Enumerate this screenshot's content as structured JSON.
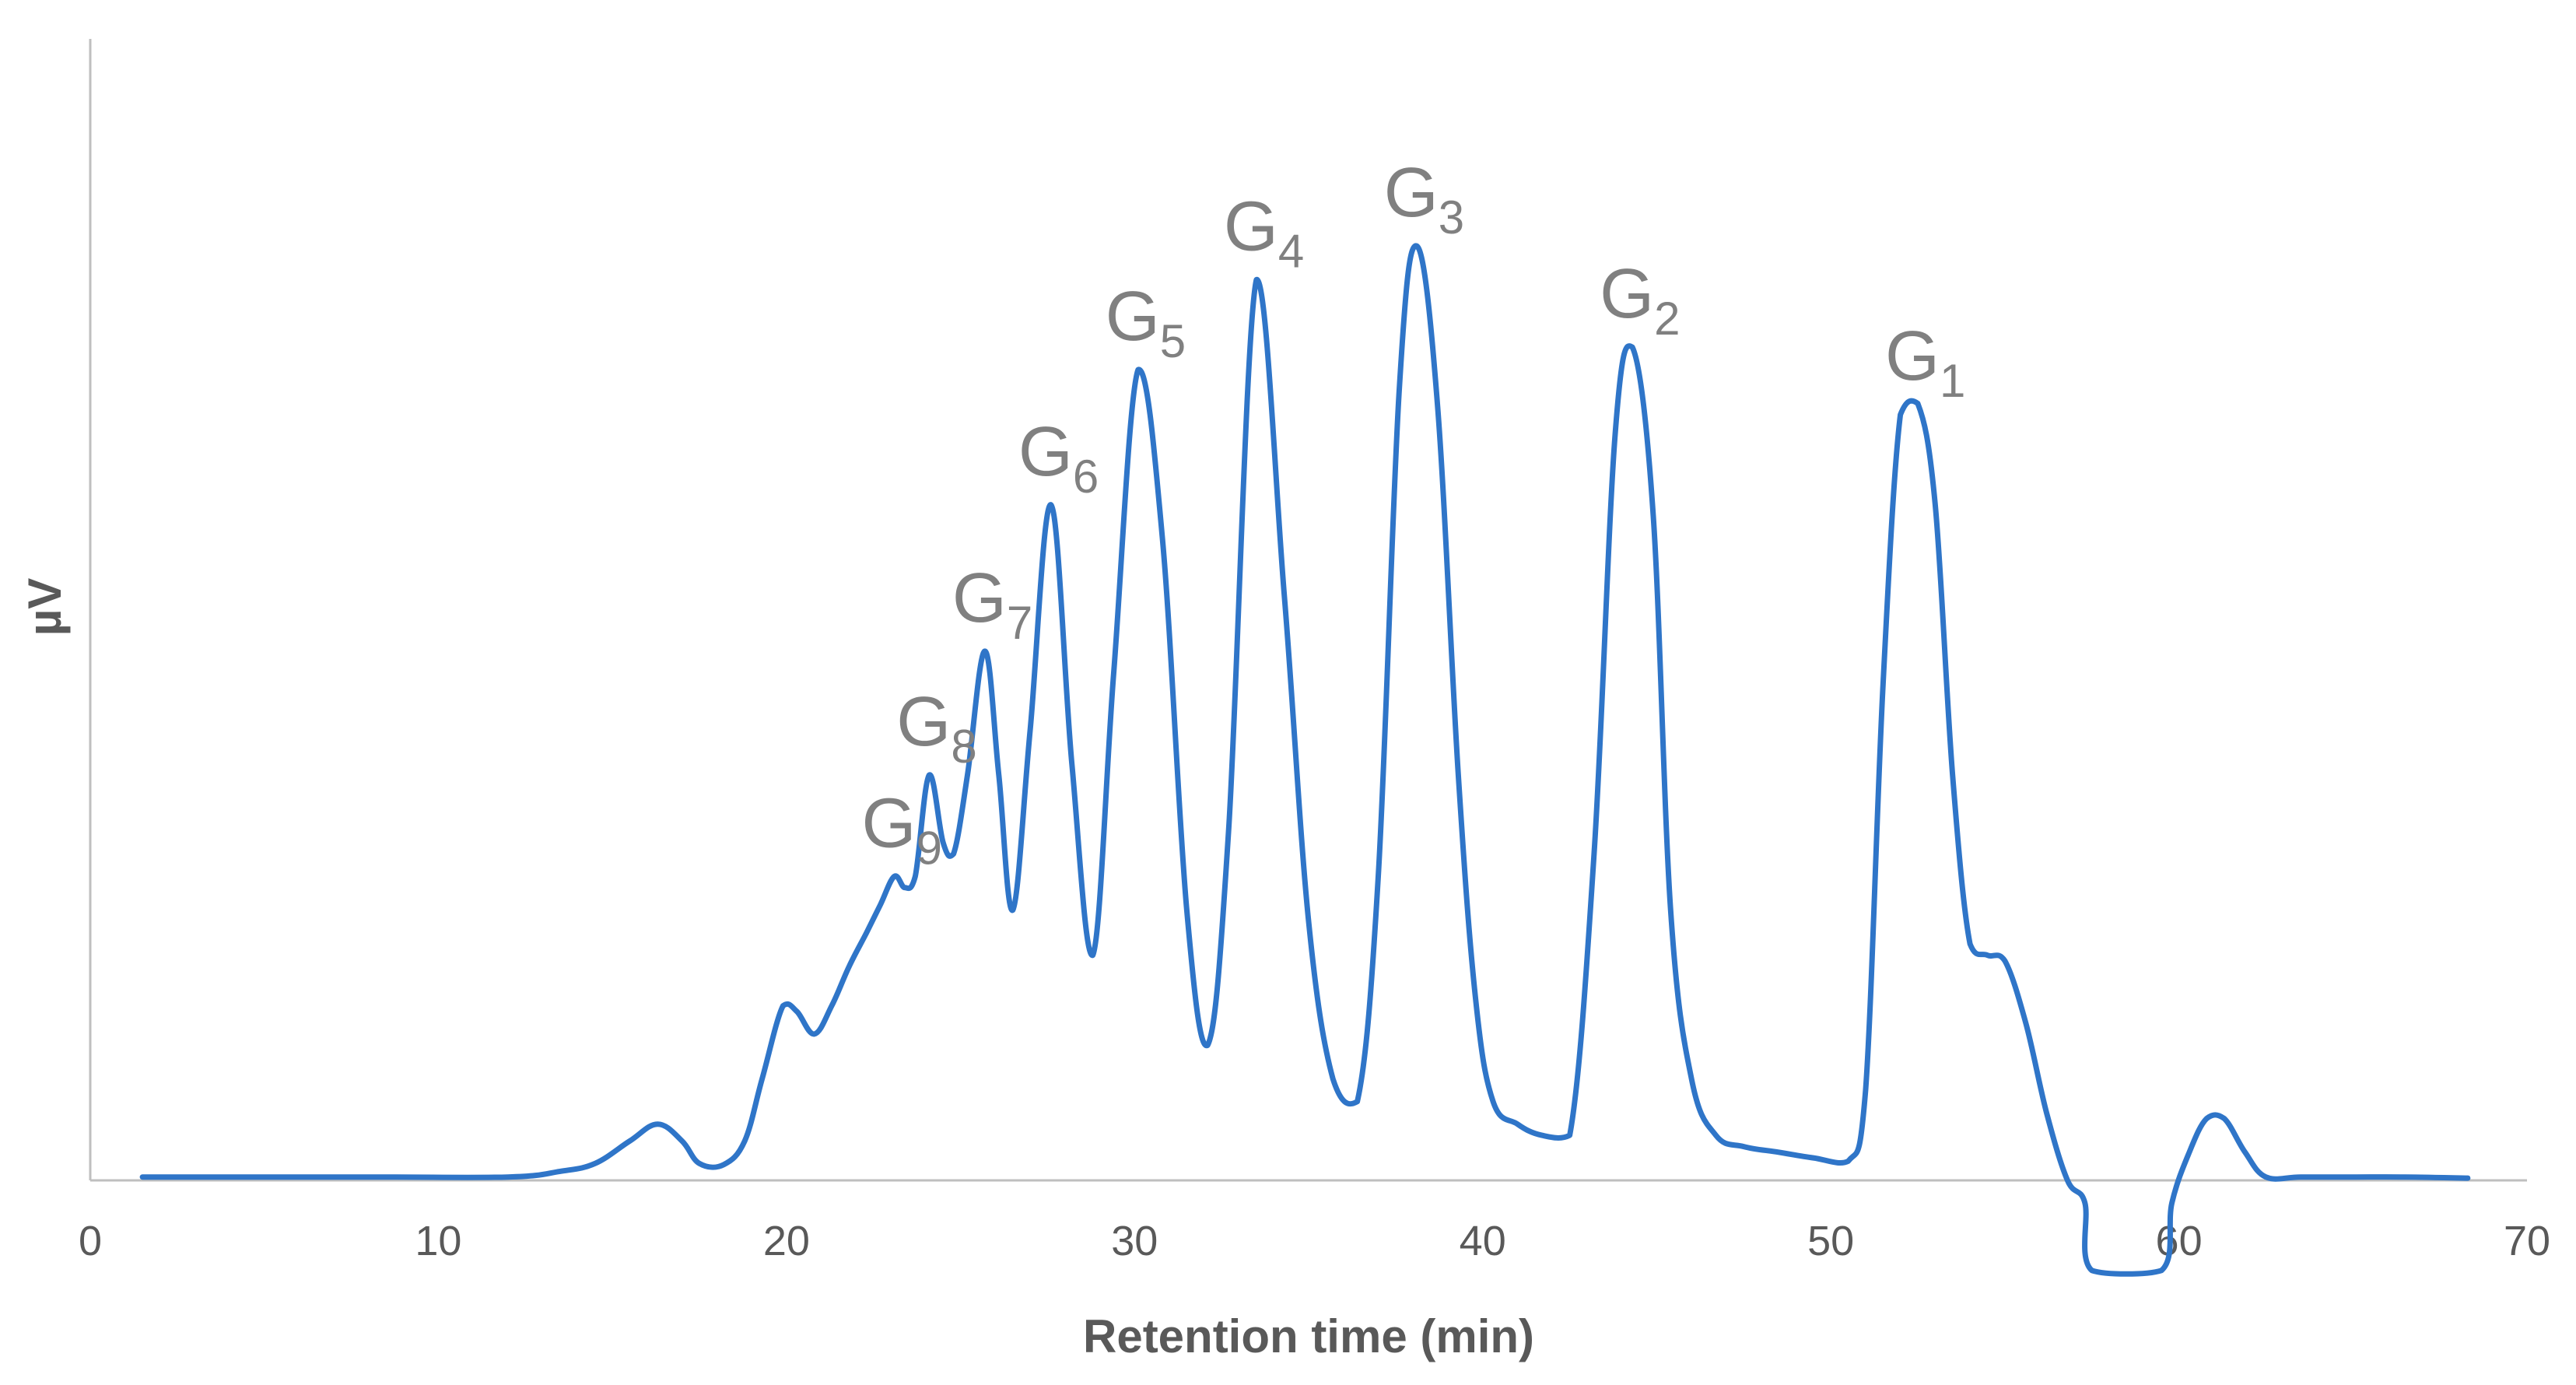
{
  "chart_data": {
    "type": "line",
    "title": "",
    "xlabel": "Retention time (min)",
    "ylabel": "µV",
    "xlim": [
      0,
      70
    ],
    "ylim": [
      -8,
      100
    ],
    "x_ticks": [
      0,
      10,
      20,
      30,
      40,
      50,
      60,
      70
    ],
    "x_tick_labels": [
      "0",
      "10",
      "20",
      "30",
      "40",
      "50",
      "60",
      "70"
    ],
    "grid": false,
    "legend": "none",
    "color": "#2f75c8",
    "series": [
      {
        "name": "µV",
        "x": [
          1.5,
          8,
          12,
          13.5,
          14.5,
          15.5,
          16.3,
          17,
          17.5,
          18.2,
          18.8,
          19.3,
          19.9,
          20.3,
          20.8,
          21.3,
          21.8,
          22.3,
          22.7,
          23.1,
          23.4,
          23.7,
          24.1,
          24.5,
          24.8,
          25.2,
          25.7,
          26.1,
          26.5,
          27.0,
          27.6,
          28.2,
          28.8,
          29.4,
          30.1,
          30.8,
          31.5,
          32.1,
          32.7,
          33.5,
          34.3,
          35.0,
          35.7,
          36.4,
          37.0,
          37.6,
          38.1,
          38.7,
          39.3,
          39.8,
          40.3,
          41.0,
          41.7,
          42.5,
          43.2,
          43.8,
          44.3,
          44.9,
          45.4,
          46.0,
          46.7,
          47.5,
          48.5,
          49.5,
          50.5,
          51.0,
          51.5,
          52.0,
          52.5,
          53.0,
          53.5,
          54.0,
          54.5,
          55.0,
          55.6,
          56.2,
          56.8,
          57.3,
          57.5,
          59.5,
          59.8,
          60.3,
          60.8,
          61.3,
          61.9,
          62.5,
          63.5,
          65,
          66.5,
          68.3
        ],
        "values": [
          0.3,
          0.3,
          0.3,
          0.8,
          1.5,
          3.5,
          5,
          3.5,
          1.5,
          1.4,
          3.5,
          9,
          15.5,
          15,
          13,
          15.5,
          19,
          22,
          24.5,
          27,
          26,
          27,
          36,
          30,
          29,
          36,
          47,
          36,
          24,
          40,
          60,
          37,
          20,
          45,
          72,
          57,
          24,
          12,
          31,
          80,
          52,
          23,
          9,
          7,
          27,
          70,
          83,
          69,
          36,
          16,
          7,
          5,
          4,
          4,
          29,
          66,
          74,
          59,
          24,
          9,
          4,
          3,
          2.5,
          2,
          1.7,
          8,
          44,
          68,
          69,
          60,
          36,
          21,
          20,
          19.5,
          14,
          6,
          0,
          -2,
          -8,
          -8,
          -2,
          2.5,
          5.5,
          5.5,
          2.5,
          0.3,
          0.3,
          0.3,
          0.3,
          0.2
        ]
      }
    ],
    "annotations": [
      {
        "base": "G",
        "sub": "1",
        "x": 52.5,
        "peak": 68.5
      },
      {
        "base": "G",
        "sub": "2",
        "x": 44.3,
        "peak": 74
      },
      {
        "base": "G",
        "sub": "3",
        "x": 38.1,
        "peak": 83
      },
      {
        "base": "G",
        "sub": "4",
        "x": 33.5,
        "peak": 80
      },
      {
        "base": "G",
        "sub": "5",
        "x": 30.1,
        "peak": 72
      },
      {
        "base": "G",
        "sub": "6",
        "x": 27.6,
        "peak": 60
      },
      {
        "base": "G",
        "sub": "7",
        "x": 25.7,
        "peak": 47
      },
      {
        "base": "G",
        "sub": "8",
        "x": 24.1,
        "peak": 36
      },
      {
        "base": "G",
        "sub": "9",
        "x": 23.1,
        "peak": 27
      }
    ]
  }
}
